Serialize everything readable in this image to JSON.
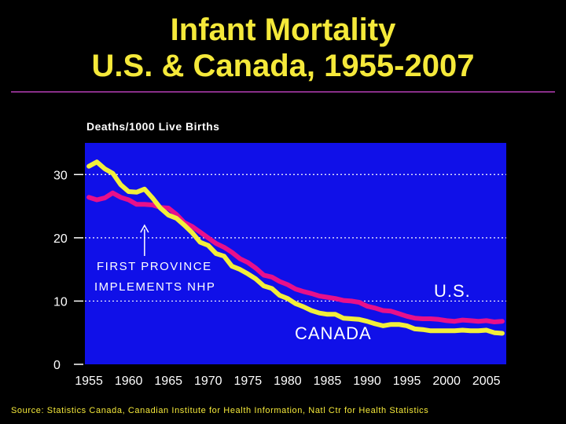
{
  "header": {
    "title_line1": "Infant Mortality",
    "title_line2": "U.S. & Canada, 1955-2007"
  },
  "source": "Source: Statistics Canada, Canadian Institute for Health Information, Natl Ctr for Health Statistics",
  "colors": {
    "background": "#000000",
    "plot": "#1010e8",
    "title": "#f5e93a",
    "us": "#e8108a",
    "canada": "#f2ef3a",
    "rule": "#8a2f8a"
  },
  "chart_data": {
    "type": "line",
    "ylabel": "Deaths/1000 Live Births",
    "ylim": [
      0,
      35
    ],
    "xlim": [
      1954.5,
      2007.5
    ],
    "yticks": [
      0,
      10,
      20,
      30
    ],
    "xticks": [
      1955,
      1960,
      1965,
      1970,
      1975,
      1980,
      1985,
      1990,
      1995,
      2000,
      2005
    ],
    "grid": "dotted horizontal at 10, 20, 30",
    "series": [
      {
        "name": "U.S.",
        "x": [
          1955,
          1956,
          1957,
          1958,
          1959,
          1960,
          1961,
          1962,
          1963,
          1964,
          1965,
          1966,
          1967,
          1968,
          1969,
          1970,
          1971,
          1972,
          1973,
          1974,
          1975,
          1976,
          1977,
          1978,
          1979,
          1980,
          1981,
          1982,
          1983,
          1984,
          1985,
          1986,
          1987,
          1988,
          1989,
          1990,
          1991,
          1992,
          1993,
          1994,
          1995,
          1996,
          1997,
          1998,
          1999,
          2000,
          2001,
          2002,
          2003,
          2004,
          2005,
          2006,
          2007
        ],
        "values": [
          26.4,
          26.0,
          26.3,
          27.1,
          26.4,
          26.0,
          25.3,
          25.3,
          25.2,
          24.8,
          24.7,
          23.7,
          22.4,
          21.8,
          20.9,
          20.0,
          19.1,
          18.5,
          17.7,
          16.7,
          16.1,
          15.2,
          14.1,
          13.8,
          13.1,
          12.6,
          11.9,
          11.5,
          11.2,
          10.8,
          10.6,
          10.4,
          10.1,
          10.0,
          9.8,
          9.2,
          8.9,
          8.5,
          8.4,
          8.0,
          7.6,
          7.3,
          7.2,
          7.2,
          7.1,
          6.9,
          6.8,
          7.0,
          6.9,
          6.8,
          6.9,
          6.7,
          6.8
        ]
      },
      {
        "name": "CANADA",
        "x": [
          1955,
          1956,
          1957,
          1958,
          1959,
          1960,
          1961,
          1962,
          1963,
          1964,
          1965,
          1966,
          1967,
          1968,
          1969,
          1970,
          1971,
          1972,
          1973,
          1974,
          1975,
          1976,
          1977,
          1978,
          1979,
          1980,
          1981,
          1982,
          1983,
          1984,
          1985,
          1986,
          1987,
          1988,
          1989,
          1990,
          1991,
          1992,
          1993,
          1994,
          1995,
          1996,
          1997,
          1998,
          1999,
          2000,
          2001,
          2002,
          2003,
          2004,
          2005,
          2006,
          2007
        ],
        "values": [
          31.3,
          32.0,
          30.9,
          30.2,
          28.4,
          27.3,
          27.2,
          27.7,
          26.3,
          24.7,
          23.6,
          23.1,
          22.0,
          20.8,
          19.3,
          18.8,
          17.5,
          17.1,
          15.5,
          15.0,
          14.3,
          13.5,
          12.4,
          12.0,
          10.9,
          10.4,
          9.6,
          9.1,
          8.5,
          8.1,
          7.9,
          7.9,
          7.3,
          7.2,
          7.1,
          6.8,
          6.4,
          6.1,
          6.3,
          6.3,
          6.1,
          5.6,
          5.5,
          5.3,
          5.3,
          5.3,
          5.3,
          5.4,
          5.3,
          5.3,
          5.4,
          5.0,
          4.9
        ]
      }
    ],
    "annotations": {
      "first_province_line1": "FIRST PROVINCE",
      "first_province_line2": "IMPLEMENTS NHP",
      "arrow_year": 1962,
      "us_label": "U.S.",
      "canada_label": "CANADA"
    }
  }
}
